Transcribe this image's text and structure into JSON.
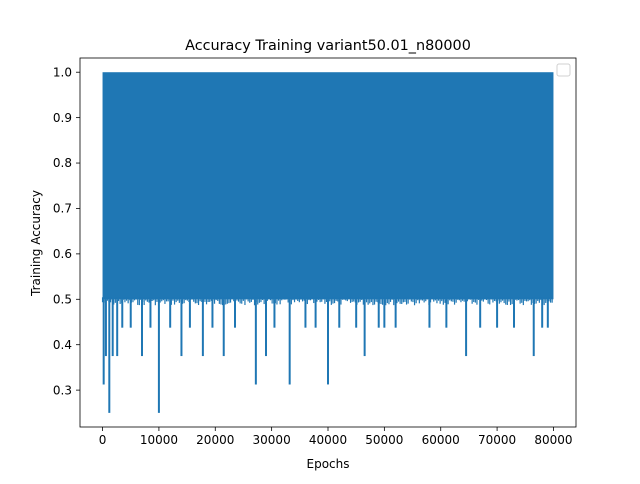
{
  "chart_data": {
    "type": "line",
    "title": "Accuracy Training variant50.01_n80000",
    "xlabel": "Epochs",
    "ylabel": "Training Accuracy",
    "xlim": [
      -4000,
      84000
    ],
    "ylim": [
      0.2188,
      1.0313
    ],
    "x_ticks": [
      0,
      10000,
      20000,
      30000,
      40000,
      50000,
      60000,
      70000,
      80000
    ],
    "x_tick_labels": [
      "0",
      "10000",
      "20000",
      "30000",
      "40000",
      "50000",
      "60000",
      "70000",
      "80000"
    ],
    "y_ticks": [
      0.3,
      0.4,
      0.5,
      0.6,
      0.7,
      0.8,
      0.9,
      1.0
    ],
    "y_tick_labels": [
      "0.3",
      "0.4",
      "0.5",
      "0.6",
      "0.7",
      "0.8",
      "0.9",
      "1.0"
    ],
    "grid": false,
    "legend": {
      "placement": "top-right",
      "entries": []
    },
    "series": [
      {
        "color": "#1f77b4",
        "envelope": {
          "upper": 1.0,
          "typical_lower": 0.5,
          "x_start": 0,
          "x_end": 80000
        },
        "dips": [
          {
            "x": 200,
            "y": 0.3125
          },
          {
            "x": 600,
            "y": 0.375
          },
          {
            "x": 1200,
            "y": 0.25
          },
          {
            "x": 1800,
            "y": 0.375
          },
          {
            "x": 2600,
            "y": 0.375
          },
          {
            "x": 3500,
            "y": 0.4375
          },
          {
            "x": 5000,
            "y": 0.4375
          },
          {
            "x": 7000,
            "y": 0.375
          },
          {
            "x": 8500,
            "y": 0.4375
          },
          {
            "x": 10000,
            "y": 0.25
          },
          {
            "x": 12000,
            "y": 0.4375
          },
          {
            "x": 14000,
            "y": 0.375
          },
          {
            "x": 15500,
            "y": 0.4375
          },
          {
            "x": 17800,
            "y": 0.375
          },
          {
            "x": 19500,
            "y": 0.4375
          },
          {
            "x": 21500,
            "y": 0.375
          },
          {
            "x": 23500,
            "y": 0.4375
          },
          {
            "x": 27200,
            "y": 0.3125
          },
          {
            "x": 29000,
            "y": 0.375
          },
          {
            "x": 30500,
            "y": 0.4375
          },
          {
            "x": 33200,
            "y": 0.3125
          },
          {
            "x": 36000,
            "y": 0.4375
          },
          {
            "x": 37800,
            "y": 0.4375
          },
          {
            "x": 40000,
            "y": 0.3125
          },
          {
            "x": 42000,
            "y": 0.4375
          },
          {
            "x": 45000,
            "y": 0.4375
          },
          {
            "x": 46500,
            "y": 0.375
          },
          {
            "x": 49000,
            "y": 0.4375
          },
          {
            "x": 50000,
            "y": 0.4375
          },
          {
            "x": 52000,
            "y": 0.4375
          },
          {
            "x": 58000,
            "y": 0.4375
          },
          {
            "x": 61000,
            "y": 0.4375
          },
          {
            "x": 64500,
            "y": 0.375
          },
          {
            "x": 67000,
            "y": 0.4375
          },
          {
            "x": 70000,
            "y": 0.4375
          },
          {
            "x": 73000,
            "y": 0.4375
          },
          {
            "x": 76500,
            "y": 0.375
          },
          {
            "x": 78000,
            "y": 0.4375
          },
          {
            "x": 79000,
            "y": 0.4375
          }
        ]
      }
    ]
  }
}
